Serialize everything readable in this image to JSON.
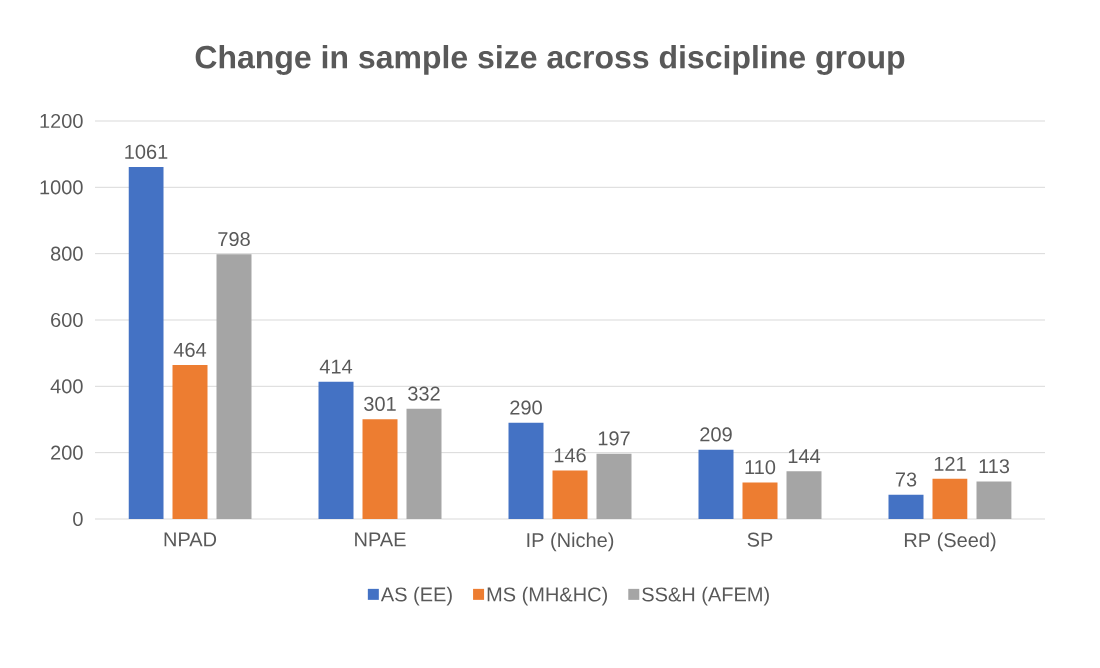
{
  "chart_data": {
    "type": "bar",
    "title": "Change in sample size across discipline group",
    "categories": [
      "NPAD",
      "NPAE",
      "IP (Niche)",
      "SP",
      "RP (Seed)"
    ],
    "series": [
      {
        "name": "AS (EE)",
        "color": "#4472c4",
        "values": [
          1061,
          414,
          290,
          209,
          73
        ]
      },
      {
        "name": "MS (MH&HC)",
        "color": "#ed7d31",
        "values": [
          464,
          301,
          146,
          110,
          121
        ]
      },
      {
        "name": "SS&H (AFEM)",
        "color": "#a5a5a5",
        "values": [
          798,
          332,
          197,
          144,
          113
        ]
      }
    ],
    "ylim": [
      0,
      1200
    ],
    "yticks": [
      0,
      200,
      400,
      600,
      800,
      1000,
      1200
    ],
    "grid": "y",
    "legend": "bottom",
    "data_labels": true
  }
}
